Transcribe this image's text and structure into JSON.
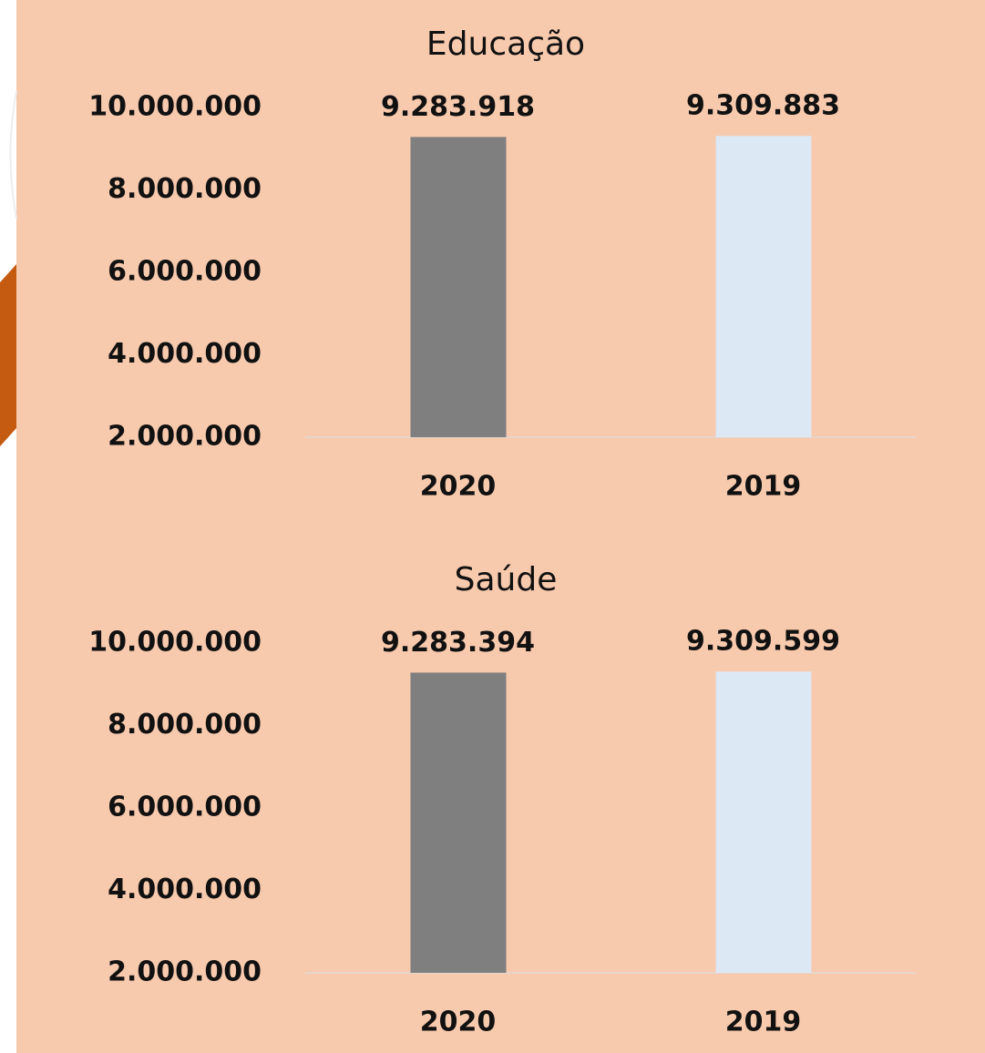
{
  "chart_data": [
    {
      "type": "bar",
      "title": "Educação",
      "categories": [
        "2020",
        "2019"
      ],
      "values": [
        9283918,
        9309883
      ],
      "value_labels": [
        "9.283.918",
        "9.309.883"
      ],
      "colors": [
        "#7f7f7f",
        "#dde8f5"
      ],
      "ylim": [
        2000000,
        10000000
      ],
      "yticks": [
        {
          "value": 2000000,
          "label": "2.000.000"
        },
        {
          "value": 4000000,
          "label": "4.000.000"
        },
        {
          "value": 6000000,
          "label": "6.000.000"
        },
        {
          "value": 8000000,
          "label": "8.000.000"
        },
        {
          "value": 10000000,
          "label": "10.000.000"
        }
      ]
    },
    {
      "type": "bar",
      "title": "Saúde",
      "categories": [
        "2020",
        "2019"
      ],
      "values": [
        9283394,
        9309599
      ],
      "value_labels": [
        "9.283.394",
        "9.309.599"
      ],
      "colors": [
        "#7f7f7f",
        "#dde8f5"
      ],
      "ylim": [
        2000000,
        10000000
      ],
      "yticks": [
        {
          "value": 2000000,
          "label": "2.000.000"
        },
        {
          "value": 4000000,
          "label": "4.000.000"
        },
        {
          "value": 6000000,
          "label": "6.000.000"
        },
        {
          "value": 8000000,
          "label": "8.000.000"
        },
        {
          "value": 10000000,
          "label": "10.000.000"
        }
      ]
    }
  ]
}
